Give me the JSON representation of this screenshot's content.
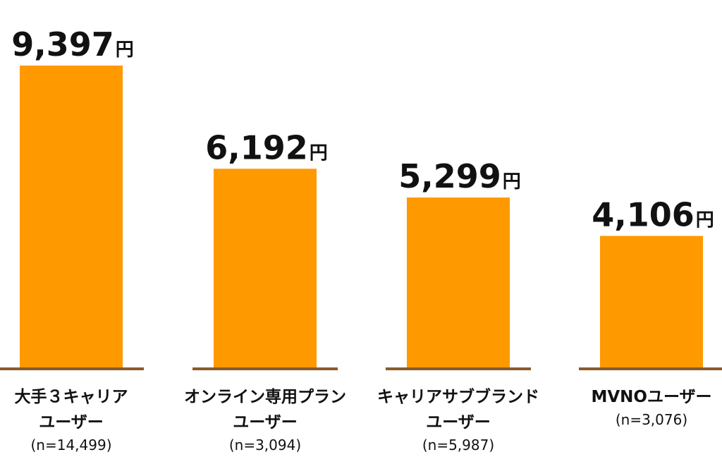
{
  "chart_data": {
    "type": "bar",
    "categories": [
      [
        "大手３キャリア",
        "ユーザー"
      ],
      [
        "オンライン専用プラン",
        "ユーザー"
      ],
      [
        "キャリアサブブランド",
        "ユーザー"
      ],
      [
        "MVNOユーザー"
      ]
    ],
    "sample_sizes": [
      "(n=14,499)",
      "(n=3,094)",
      "(n=5,987)",
      "(n=3,076)"
    ],
    "values": [
      9397,
      6192,
      5299,
      4106
    ],
    "value_labels": [
      "9,397",
      "6,192",
      "5,299",
      "4,106"
    ],
    "unit": "円",
    "ylim": [
      0,
      9900
    ],
    "grid": false,
    "legend": "none",
    "colors": {
      "bar": "#FF9900",
      "baseline": "#8B5A2B",
      "text": "#111111"
    }
  }
}
